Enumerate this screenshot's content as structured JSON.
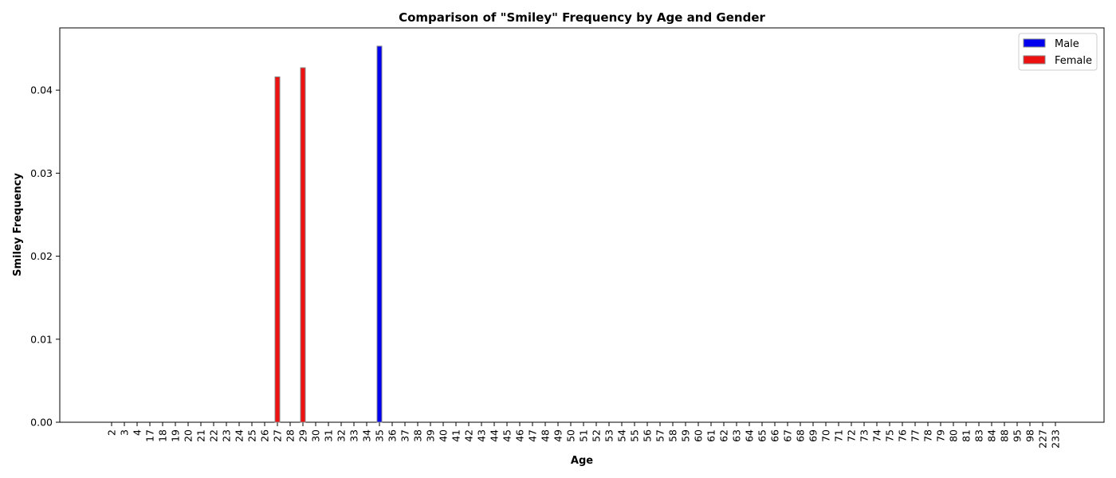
{
  "chart_data": {
    "type": "bar",
    "title": "Comparison of \"Smiley\" Frequency by Age and Gender",
    "xlabel": "Age",
    "ylabel": "Smiley Frequency",
    "ylim": [
      0,
      0.0475
    ],
    "yticks": [
      "0.00",
      "0.01",
      "0.02",
      "0.03",
      "0.04"
    ],
    "legend_position": "top-right",
    "grid": false,
    "categories": [
      "2",
      "3",
      "4",
      "17",
      "18",
      "19",
      "20",
      "21",
      "22",
      "23",
      "24",
      "25",
      "26",
      "27",
      "28",
      "29",
      "30",
      "31",
      "32",
      "33",
      "34",
      "35",
      "36",
      "37",
      "38",
      "39",
      "40",
      "41",
      "42",
      "43",
      "44",
      "45",
      "46",
      "47",
      "48",
      "49",
      "50",
      "51",
      "52",
      "53",
      "54",
      "55",
      "56",
      "57",
      "58",
      "59",
      "60",
      "61",
      "62",
      "63",
      "64",
      "65",
      "66",
      "67",
      "68",
      "69",
      "70",
      "71",
      "72",
      "73",
      "74",
      "75",
      "76",
      "77",
      "78",
      "79",
      "80",
      "81",
      "83",
      "84",
      "88",
      "95",
      "98",
      "227",
      "233"
    ],
    "series": [
      {
        "name": "Male",
        "color": "#0000ee",
        "points": [
          {
            "category": "35",
            "value": 0.0453
          }
        ]
      },
      {
        "name": "Female",
        "color": "#ee1111",
        "points": [
          {
            "category": "27",
            "value": 0.0416
          },
          {
            "category": "29",
            "value": 0.0427
          }
        ]
      }
    ]
  }
}
